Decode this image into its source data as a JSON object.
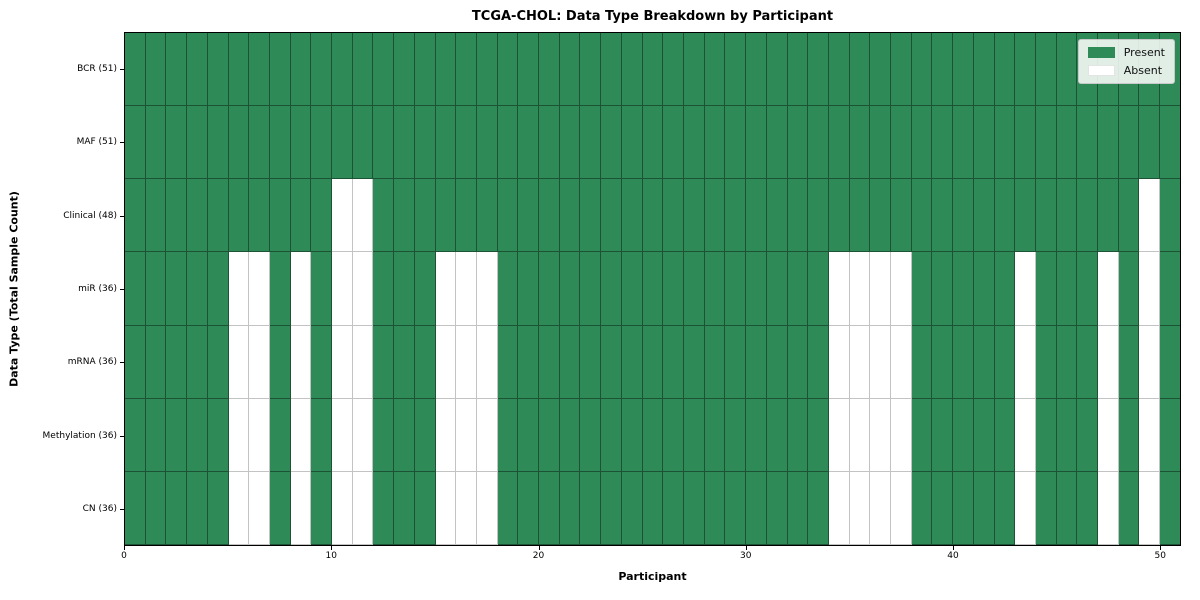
{
  "title": "TCGA-CHOL: Data Type Breakdown by Participant",
  "xlabel": "Participant",
  "ylabel": "Data Type (Total Sample Count)",
  "legend": {
    "present_label": "Present",
    "absent_label": "Absent",
    "position": "upper right"
  },
  "colors": {
    "present": "#2E8B57",
    "absent": "#FFFFFF",
    "grid_on_present": "rgba(0,0,0,0.40)",
    "grid_on_absent": "#c3c3c3",
    "frame": "#000000"
  },
  "x_ticks": [
    0,
    10,
    20,
    30,
    40,
    50
  ],
  "chart_data": {
    "type": "heatmap",
    "title": "TCGA-CHOL: Data Type Breakdown by Participant",
    "xlabel": "Participant",
    "ylabel": "Data Type (Total Sample Count)",
    "legend_entries": [
      "Present",
      "Absent"
    ],
    "legend_position": "upper right",
    "grid": true,
    "n_participants": 51,
    "x_range": [
      0,
      51
    ],
    "x_tick_values": [
      0,
      10,
      20,
      30,
      40,
      50
    ],
    "cell_values": {
      "present": 1,
      "absent": 0
    },
    "rows": [
      {
        "data_type": "BCR",
        "label": "BCR (51)",
        "present_count": 51,
        "absent_participants": []
      },
      {
        "data_type": "MAF",
        "label": "MAF (51)",
        "present_count": 51,
        "absent_participants": []
      },
      {
        "data_type": "Clinical",
        "label": "Clinical (48)",
        "present_count": 48,
        "absent_participants": [
          10,
          11,
          49
        ]
      },
      {
        "data_type": "miR",
        "label": "miR (36)",
        "present_count": 36,
        "absent_participants": [
          5,
          6,
          8,
          10,
          11,
          15,
          16,
          17,
          34,
          35,
          36,
          37,
          43,
          47,
          49
        ]
      },
      {
        "data_type": "mRNA",
        "label": "mRNA (36)",
        "present_count": 36,
        "absent_participants": [
          5,
          6,
          8,
          10,
          11,
          15,
          16,
          17,
          34,
          35,
          36,
          37,
          43,
          47,
          49
        ]
      },
      {
        "data_type": "Methylation",
        "label": "Methylation (36)",
        "present_count": 36,
        "absent_participants": [
          5,
          6,
          8,
          10,
          11,
          15,
          16,
          17,
          34,
          35,
          36,
          37,
          43,
          47,
          49
        ]
      },
      {
        "data_type": "CN",
        "label": "CN (36)",
        "present_count": 36,
        "absent_participants": [
          5,
          6,
          8,
          10,
          11,
          15,
          16,
          17,
          34,
          35,
          36,
          37,
          43,
          47,
          49
        ]
      }
    ]
  }
}
